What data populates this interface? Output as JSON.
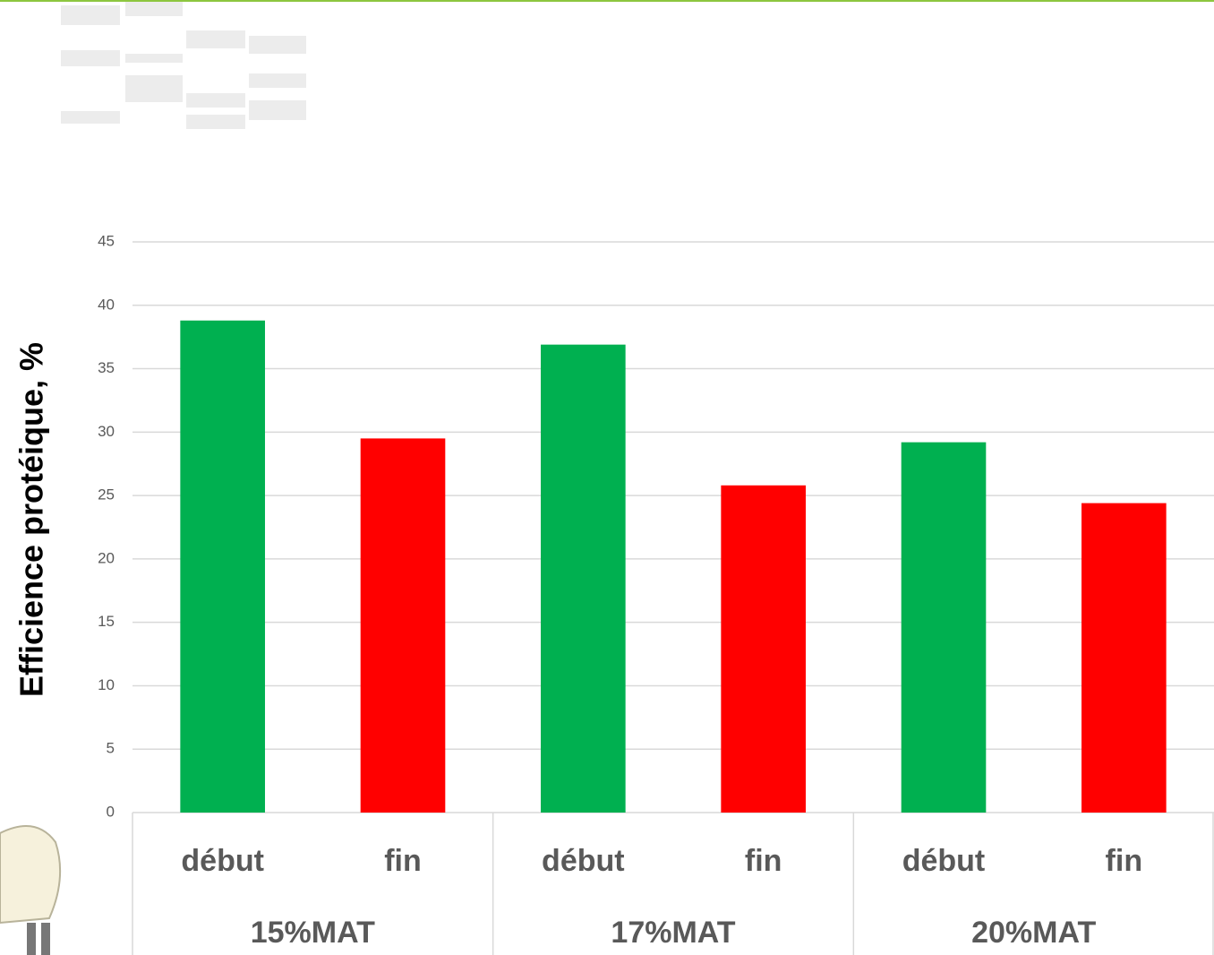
{
  "chart_data": {
    "type": "bar",
    "y_label": "Efficience protéique, %",
    "categories": [
      "début",
      "fin",
      "début",
      "fin",
      "début",
      "fin"
    ],
    "groups": [
      "15%MAT",
      "17%MAT",
      "20%MAT"
    ],
    "values": [
      38.8,
      29.5,
      36.9,
      25.8,
      29.2,
      24.4
    ],
    "colors": [
      "#00b050",
      "#ff0000",
      "#00b050",
      "#ff0000",
      "#00b050",
      "#ff0000"
    ],
    "ylim": [
      0,
      45
    ],
    "yticks": [
      0,
      5,
      10,
      15,
      20,
      25,
      30,
      35,
      40,
      45
    ],
    "grid": true
  }
}
